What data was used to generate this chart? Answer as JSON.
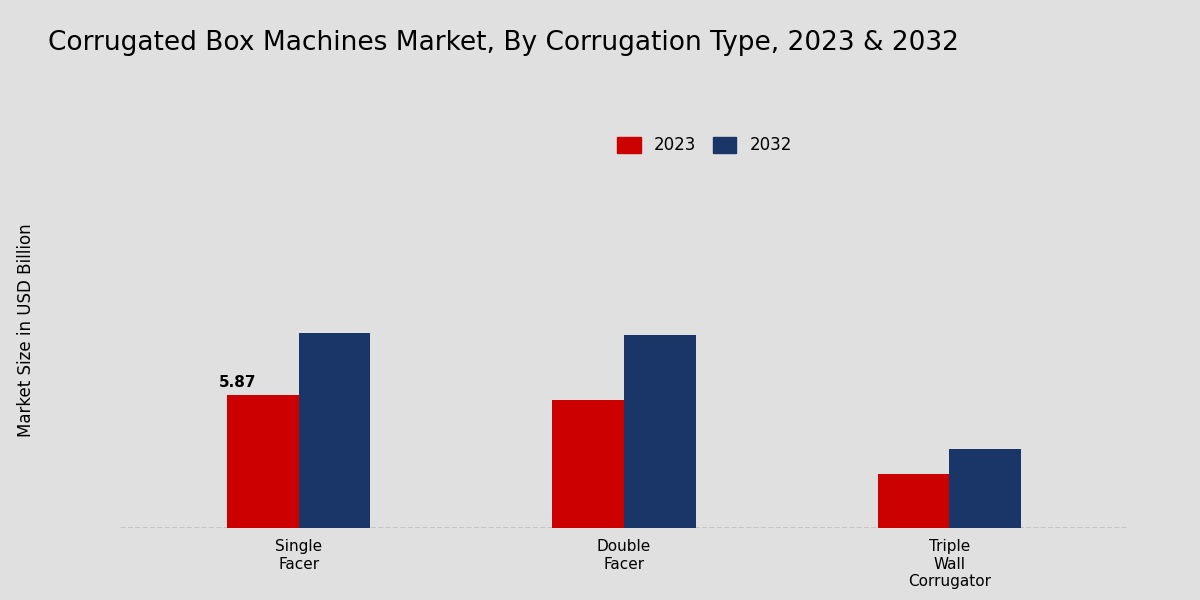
{
  "title": "Corrugated Box Machines Market, By Corrugation Type, 2023 & 2032",
  "ylabel": "Market Size in USD Billion",
  "categories": [
    "Single\nFacer",
    "Double\nFacer",
    "Triple\nWall\nCorrugator"
  ],
  "values_2023": [
    5.87,
    5.65,
    2.4
  ],
  "values_2032": [
    8.6,
    8.5,
    3.5
  ],
  "color_2023": "#cc0000",
  "color_2032": "#1a3668",
  "annotation_text": "5.87",
  "background_color": "#e0e0e0",
  "bar_width": 0.22,
  "ylim": [
    0,
    18
  ],
  "legend_labels": [
    "2023",
    "2032"
  ],
  "title_fontsize": 19,
  "axis_label_fontsize": 12,
  "tick_fontsize": 11,
  "legend_fontsize": 12,
  "footer_color": "#cc0000"
}
